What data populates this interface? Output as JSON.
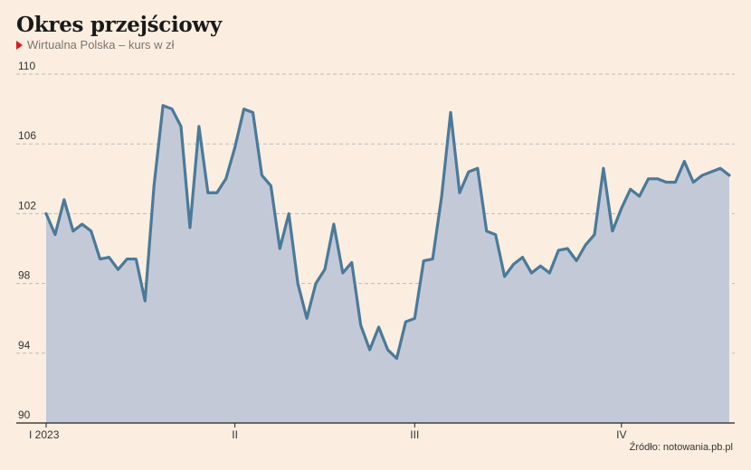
{
  "header": {
    "title": "Okres przejściowy",
    "subtitle": "Wirtualna Polska – kurs w zł"
  },
  "footer": {
    "source": "Źródło: notowania.pb.pl"
  },
  "colors": {
    "background": "#fbeee0",
    "line": "#4a7a99",
    "area": "#c4c9d8",
    "marker": "#e0141e",
    "grid": "#bbbbbb"
  },
  "chart_data": {
    "type": "area",
    "title": "Okres przejściowy",
    "subtitle": "Wirtualna Polska – kurs w zł",
    "xlabel": "",
    "ylabel": "",
    "ylim": [
      90,
      110
    ],
    "yticks": [
      90,
      94,
      98,
      102,
      106,
      110
    ],
    "grid": true,
    "x_ticks": [
      {
        "label": "I 2023",
        "index": 0
      },
      {
        "label": "II",
        "index": 21
      },
      {
        "label": "III",
        "index": 41
      },
      {
        "label": "IV",
        "index": 64
      }
    ],
    "series": [
      {
        "values": [
          102.0,
          100.8,
          102.8,
          101.0,
          101.4,
          101.0,
          99.4,
          99.5,
          98.8,
          99.4,
          99.4,
          97.0,
          103.6,
          108.2,
          108.0,
          107.0,
          101.2,
          107.0,
          103.2,
          103.2,
          104.0,
          105.8,
          108.0,
          107.8,
          104.2,
          103.6,
          100.0,
          102.0,
          98.0,
          96.0,
          98.0,
          98.8,
          101.4,
          98.6,
          99.2,
          95.6,
          94.2,
          95.5,
          94.2,
          93.7,
          95.8,
          96.0,
          99.3,
          99.4,
          103.0,
          107.8,
          103.2,
          104.4,
          104.6,
          101.0,
          100.8,
          98.4,
          99.1,
          99.5,
          98.6,
          99.0,
          98.6,
          99.9,
          100.0,
          99.3,
          100.2,
          100.8,
          104.6,
          101.0,
          102.3,
          103.4,
          103.0,
          104.0,
          104.0,
          103.8,
          103.8,
          105.0,
          103.8,
          104.2,
          104.4,
          104.6,
          104.2
        ]
      }
    ]
  }
}
